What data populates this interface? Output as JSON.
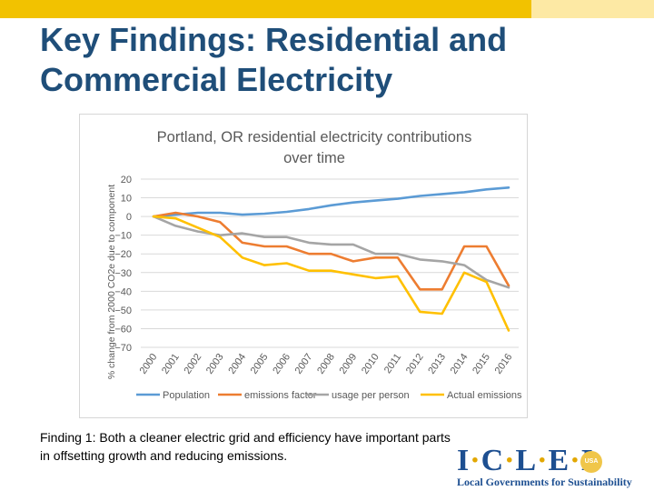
{
  "slide": {
    "title_line1": "Key Findings: Residential and",
    "title_line2": "Commercial Electricity",
    "finding": "Finding 1: Both a cleaner electric grid and efficiency have important parts in offsetting growth and reducing emissions.",
    "logo_text": "ICLEI",
    "logo_badge": "USA",
    "logo_tagline": "Local Governments for Sustainability"
  },
  "colors": {
    "top_bar": "#f2c200",
    "top_bar_light": "#fde9a4",
    "title": "#1f4e79",
    "logo_blue": "#1d4f91"
  },
  "chart_data": {
    "type": "line",
    "title_line1": "Portland, OR residential electricity contributions",
    "title_line2": "over time",
    "xlabel": "",
    "ylabel": "% change from 2000 CO2e due to component",
    "categories": [
      "2000",
      "2001",
      "2002",
      "2003",
      "2004",
      "2005",
      "2006",
      "2007",
      "2008",
      "2009",
      "2010",
      "2011",
      "2012",
      "2013",
      "2014",
      "2015",
      "2016"
    ],
    "ylim": [
      -70,
      20
    ],
    "yticks": [
      20,
      10,
      0,
      -10,
      -20,
      -30,
      -40,
      -50,
      -60,
      -70
    ],
    "grid": true,
    "legend_position": "bottom",
    "series": [
      {
        "name": "Population",
        "color": "#5b9bd5",
        "values": [
          0,
          1,
          2,
          2,
          1,
          1.5,
          2.5,
          4,
          6,
          7.5,
          8.5,
          9.5,
          11,
          12,
          13,
          14.5,
          15.5
        ]
      },
      {
        "name": "emissions factor",
        "color": "#ed7d31",
        "values": [
          0,
          2,
          0,
          -3,
          -14,
          -16,
          -16,
          -20,
          -20,
          -24,
          -22,
          -22,
          -39,
          -39,
          -16,
          -16,
          -37
        ]
      },
      {
        "name": "usage per person",
        "color": "#a5a5a5",
        "values": [
          0,
          -5,
          -8,
          -10,
          -9,
          -11,
          -11,
          -14,
          -15,
          -15,
          -20,
          -20,
          -23,
          -24,
          -26,
          -34,
          -38
        ]
      },
      {
        "name": "Actual emissions",
        "color": "#ffc000",
        "values": [
          0,
          -1,
          -6,
          -11,
          -22,
          -26,
          -25,
          -29,
          -29,
          -31,
          -33,
          -32,
          -51,
          -52,
          -30,
          -35,
          -61
        ]
      }
    ]
  }
}
